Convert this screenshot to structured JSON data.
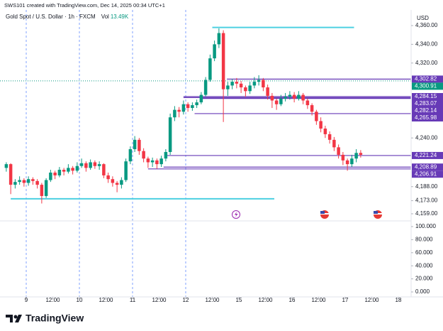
{
  "header": "SWS101 created with TradingView.com, Dec 14, 2025 00:34 UTC+1",
  "logo": "TradingView",
  "chart_data": {
    "type": "candlestick",
    "symbol": "Gold Spot / U.S. Dollar · 1h · FXCM",
    "volume_label": "Vol",
    "volume_value": "13.49K",
    "currency": "USD",
    "up_color": "#089981",
    "down_color": "#f23645",
    "xlim": [
      -11.84,
      173.76
    ],
    "xticks": [
      {
        "value": 0,
        "label": "9"
      },
      {
        "value": 12,
        "label": "12:00"
      },
      {
        "value": 24,
        "label": "10"
      },
      {
        "value": 36,
        "label": "12:00"
      },
      {
        "value": 48,
        "label": "11"
      },
      {
        "value": 60,
        "label": "12:00"
      },
      {
        "value": 72,
        "label": "12"
      },
      {
        "value": 84,
        "label": "12:00"
      },
      {
        "value": 96,
        "label": "15"
      },
      {
        "value": 108,
        "label": "12:00"
      },
      {
        "value": 120,
        "label": "16"
      },
      {
        "value": 132,
        "label": "12:00"
      },
      {
        "value": 144,
        "label": "17"
      },
      {
        "value": 156,
        "label": "12:00"
      },
      {
        "value": 168,
        "label": "18"
      }
    ],
    "session_breaks": [
      0,
      24,
      48,
      72
    ],
    "ylim": [
      4151.4,
      4376.7
    ],
    "yticks": [
      {
        "value": 4360,
        "label": "4,360.00"
      },
      {
        "value": 4340,
        "label": "4,340.00"
      },
      {
        "value": 4320,
        "label": "4,320.00"
      },
      {
        "value": 4240,
        "label": "4,240.00"
      },
      {
        "value": 4188,
        "label": "4,188.00"
      },
      {
        "value": 4173,
        "label": "4,173.00"
      },
      {
        "value": 4159,
        "label": "4,159.00"
      }
    ],
    "y2lim": [
      -7.6,
      108.7
    ],
    "y2ticks": [
      {
        "value": 100,
        "label": "100.000"
      },
      {
        "value": 80,
        "label": "80.000"
      },
      {
        "value": 60,
        "label": "60.000"
      },
      {
        "value": 40,
        "label": "40.000"
      },
      {
        "value": 20,
        "label": "20.000"
      },
      {
        "value": 0,
        "label": "0.000"
      }
    ],
    "candles": [
      [
        -9,
        4208,
        4214,
        4204,
        4212
      ],
      [
        -7,
        4212,
        4213,
        4180,
        4190
      ],
      [
        -5,
        4190,
        4196,
        4186,
        4193
      ],
      [
        -3,
        4193,
        4199,
        4190,
        4195
      ],
      [
        -1,
        4195,
        4197,
        4188,
        4192
      ],
      [
        1,
        4192,
        4199,
        4189,
        4196
      ],
      [
        3,
        4196,
        4198,
        4190,
        4194
      ],
      [
        5,
        4194,
        4196,
        4186,
        4190
      ],
      [
        7,
        4190,
        4192,
        4170,
        4178
      ],
      [
        9,
        4178,
        4197,
        4176,
        4195
      ],
      [
        11,
        4195,
        4206,
        4193,
        4203
      ],
      [
        13,
        4203,
        4205,
        4196,
        4200
      ],
      [
        15,
        4200,
        4209,
        4198,
        4206
      ],
      [
        17,
        4206,
        4208,
        4200,
        4204
      ],
      [
        19,
        4204,
        4212,
        4202,
        4208
      ],
      [
        21,
        4208,
        4210,
        4201,
        4205
      ],
      [
        23,
        4205,
        4214,
        4203,
        4210
      ],
      [
        25,
        4210,
        4218,
        4208,
        4213
      ],
      [
        27,
        4213,
        4215,
        4204,
        4208
      ],
      [
        29,
        4208,
        4217,
        4206,
        4214
      ],
      [
        31,
        4214,
        4216,
        4207,
        4210
      ],
      [
        33,
        4210,
        4215,
        4206,
        4212
      ],
      [
        35,
        4212,
        4213,
        4197,
        4200
      ],
      [
        37,
        4200,
        4203,
        4192,
        4196
      ],
      [
        39,
        4196,
        4199,
        4188,
        4192
      ],
      [
        41,
        4192,
        4194,
        4182,
        4190
      ],
      [
        43,
        4190,
        4198,
        4186,
        4195
      ],
      [
        45,
        4195,
        4218,
        4193,
        4215
      ],
      [
        47,
        4215,
        4231,
        4212,
        4228
      ],
      [
        49,
        4228,
        4242,
        4225,
        4238
      ],
      [
        51,
        4238,
        4240,
        4222,
        4226
      ],
      [
        53,
        4226,
        4229,
        4214,
        4218
      ],
      [
        55,
        4218,
        4220,
        4208,
        4214
      ],
      [
        57,
        4214,
        4219,
        4209,
        4216
      ],
      [
        59,
        4216,
        4218,
        4207,
        4212
      ],
      [
        61,
        4212,
        4221,
        4209,
        4218
      ],
      [
        63,
        4218,
        4228,
        4215,
        4225
      ],
      [
        65,
        4225,
        4266,
        4222,
        4262
      ],
      [
        67,
        4262,
        4274,
        4258,
        4270
      ],
      [
        69,
        4270,
        4273,
        4262,
        4268
      ],
      [
        71,
        4268,
        4280,
        4265,
        4276
      ],
      [
        73,
        4276,
        4278,
        4268,
        4272
      ],
      [
        75,
        4272,
        4278,
        4269,
        4275
      ],
      [
        77,
        4275,
        4281,
        4272,
        4278
      ],
      [
        79,
        4278,
        4289,
        4276,
        4286
      ],
      [
        81,
        4286,
        4305,
        4284,
        4302
      ],
      [
        83,
        4302,
        4329,
        4300,
        4325
      ],
      [
        85,
        4325,
        4344,
        4322,
        4340
      ],
      [
        87,
        4340,
        4357,
        4336,
        4352
      ],
      [
        89,
        4352,
        4355,
        4257,
        4292
      ],
      [
        91,
        4292,
        4300,
        4285,
        4296
      ],
      [
        93,
        4296,
        4303,
        4292,
        4300
      ],
      [
        95,
        4300,
        4304,
        4293,
        4298
      ],
      [
        97,
        4298,
        4301,
        4288,
        4294
      ],
      [
        99,
        4294,
        4296,
        4284,
        4290
      ],
      [
        101,
        4290,
        4300,
        4287,
        4296
      ],
      [
        103,
        4296,
        4305,
        4293,
        4300
      ],
      [
        105,
        4300,
        4307,
        4296,
        4302
      ],
      [
        107,
        4302,
        4304,
        4290,
        4294
      ],
      [
        109,
        4294,
        4297,
        4281,
        4285
      ],
      [
        111,
        4285,
        4288,
        4272,
        4280
      ],
      [
        113,
        4280,
        4282,
        4270,
        4276
      ],
      [
        115,
        4276,
        4286,
        4274,
        4282
      ],
      [
        117,
        4282,
        4288,
        4279,
        4284
      ],
      [
        119,
        4284,
        4290,
        4281,
        4286
      ],
      [
        121,
        4286,
        4289,
        4278,
        4282
      ],
      [
        123,
        4282,
        4290,
        4280,
        4286
      ],
      [
        125,
        4286,
        4288,
        4276,
        4280
      ],
      [
        127,
        4280,
        4282,
        4271,
        4275
      ],
      [
        129,
        4275,
        4277,
        4264,
        4268
      ],
      [
        131,
        4268,
        4270,
        4254,
        4258
      ],
      [
        133,
        4258,
        4262,
        4246,
        4250
      ],
      [
        135,
        4250,
        4253,
        4240,
        4244
      ],
      [
        137,
        4244,
        4247,
        4234,
        4238
      ],
      [
        139,
        4238,
        4241,
        4226,
        4230
      ],
      [
        141,
        4230,
        4233,
        4218,
        4222
      ],
      [
        143,
        4222,
        4225,
        4211,
        4216
      ],
      [
        145,
        4216,
        4218,
        4205,
        4212
      ],
      [
        147,
        4212,
        4222,
        4209,
        4218
      ],
      [
        149,
        4218,
        4228,
        4214,
        4224
      ],
      [
        151,
        4224,
        4227,
        4219,
        4222
      ]
    ],
    "trend_lines": [
      {
        "price": 4358,
        "from": 84,
        "to": 148,
        "color": "#4dd0e1"
      },
      {
        "price": 4175,
        "from": -7,
        "to": 112,
        "color": "#4dd0e1"
      }
    ],
    "levels_color": "#673ab7",
    "levels": [
      {
        "value": 4302.82,
        "label": "4,302.82",
        "from": 90.6
      },
      {
        "value": 4284.15,
        "label": "4,284.15",
        "from": 71
      },
      {
        "value": 4283.07,
        "label": "4,283.07",
        "from": 71
      },
      {
        "value": 4282.14,
        "label": "4,282.14",
        "from": 79
      },
      {
        "value": 4265.98,
        "label": "4,265.98",
        "from": 76
      },
      {
        "value": 4221.24,
        "label": "4,221.24",
        "from": 63
      },
      {
        "value": 4208.89,
        "label": "4,208.89",
        "from": 62
      },
      {
        "value": 4206.91,
        "label": "4,206.91",
        "from": 55
      }
    ],
    "last_price": {
      "value": 4300.91,
      "label": "4,300.91",
      "color": "#089981"
    }
  }
}
